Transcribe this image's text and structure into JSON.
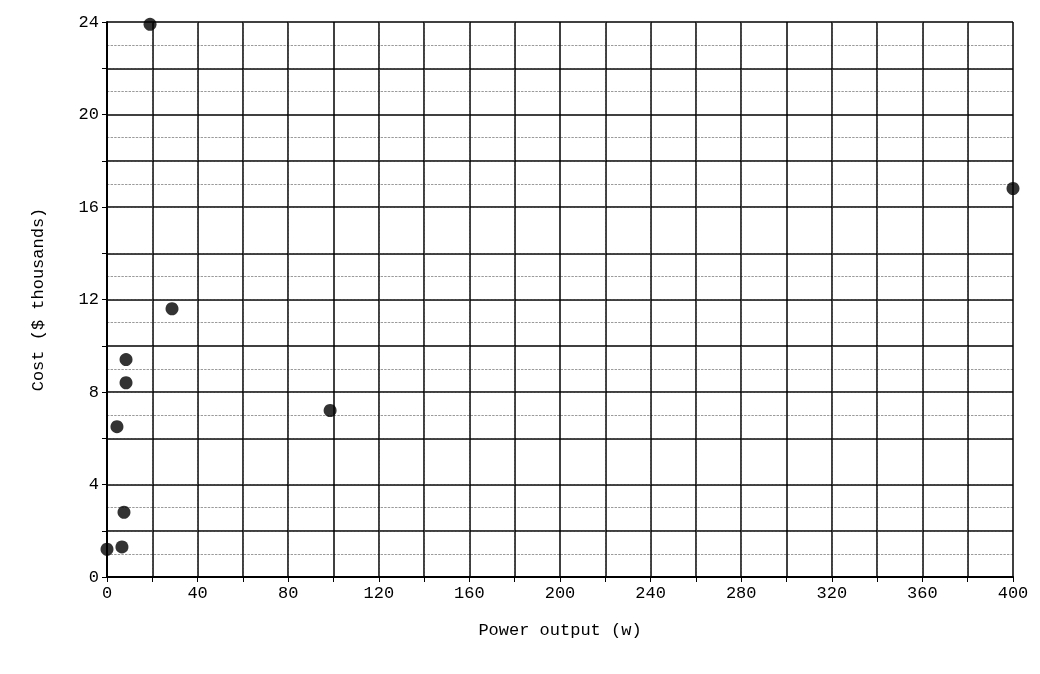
{
  "chart_data": {
    "type": "scatter",
    "xlabel": "Power output (w)",
    "ylabel": "Cost ($ thousands)",
    "x": [
      0,
      6.6,
      7.5,
      4.4,
      8.4,
      8.4,
      28.7,
      19,
      98.5,
      400
    ],
    "values": [
      1.2,
      1.3,
      2.8,
      6.5,
      8.4,
      9.4,
      11.6,
      23.9,
      7.2,
      16.8
    ],
    "color": "#000000",
    "marker": "circle",
    "xlim": [
      0,
      400
    ],
    "ylim": [
      0,
      24
    ],
    "xticks": [
      0,
      {
        "value": 20,
        "label": null
      },
      40,
      {
        "value": 60,
        "label": null
      },
      80,
      {
        "value": 100,
        "label": null
      },
      120,
      {
        "value": 140,
        "label": null
      },
      160,
      {
        "value": 180,
        "label": null
      },
      200,
      {
        "value": 220,
        "label": null
      },
      240,
      {
        "value": 260,
        "label": null
      },
      280,
      {
        "value": 300,
        "label": null
      },
      320,
      {
        "value": 340,
        "label": null
      },
      360,
      {
        "value": 380,
        "label": null
      },
      400
    ],
    "yticks": [
      0,
      {
        "value": 2,
        "label": null
      },
      4,
      {
        "value": 6,
        "label": null
      },
      8,
      {
        "value": 10,
        "label": null
      },
      12,
      {
        "value": 14,
        "label": null
      },
      16,
      {
        "value": 18,
        "label": null
      },
      20,
      {
        "value": 22,
        "label": null
      },
      24
    ],
    "grid": true
  }
}
